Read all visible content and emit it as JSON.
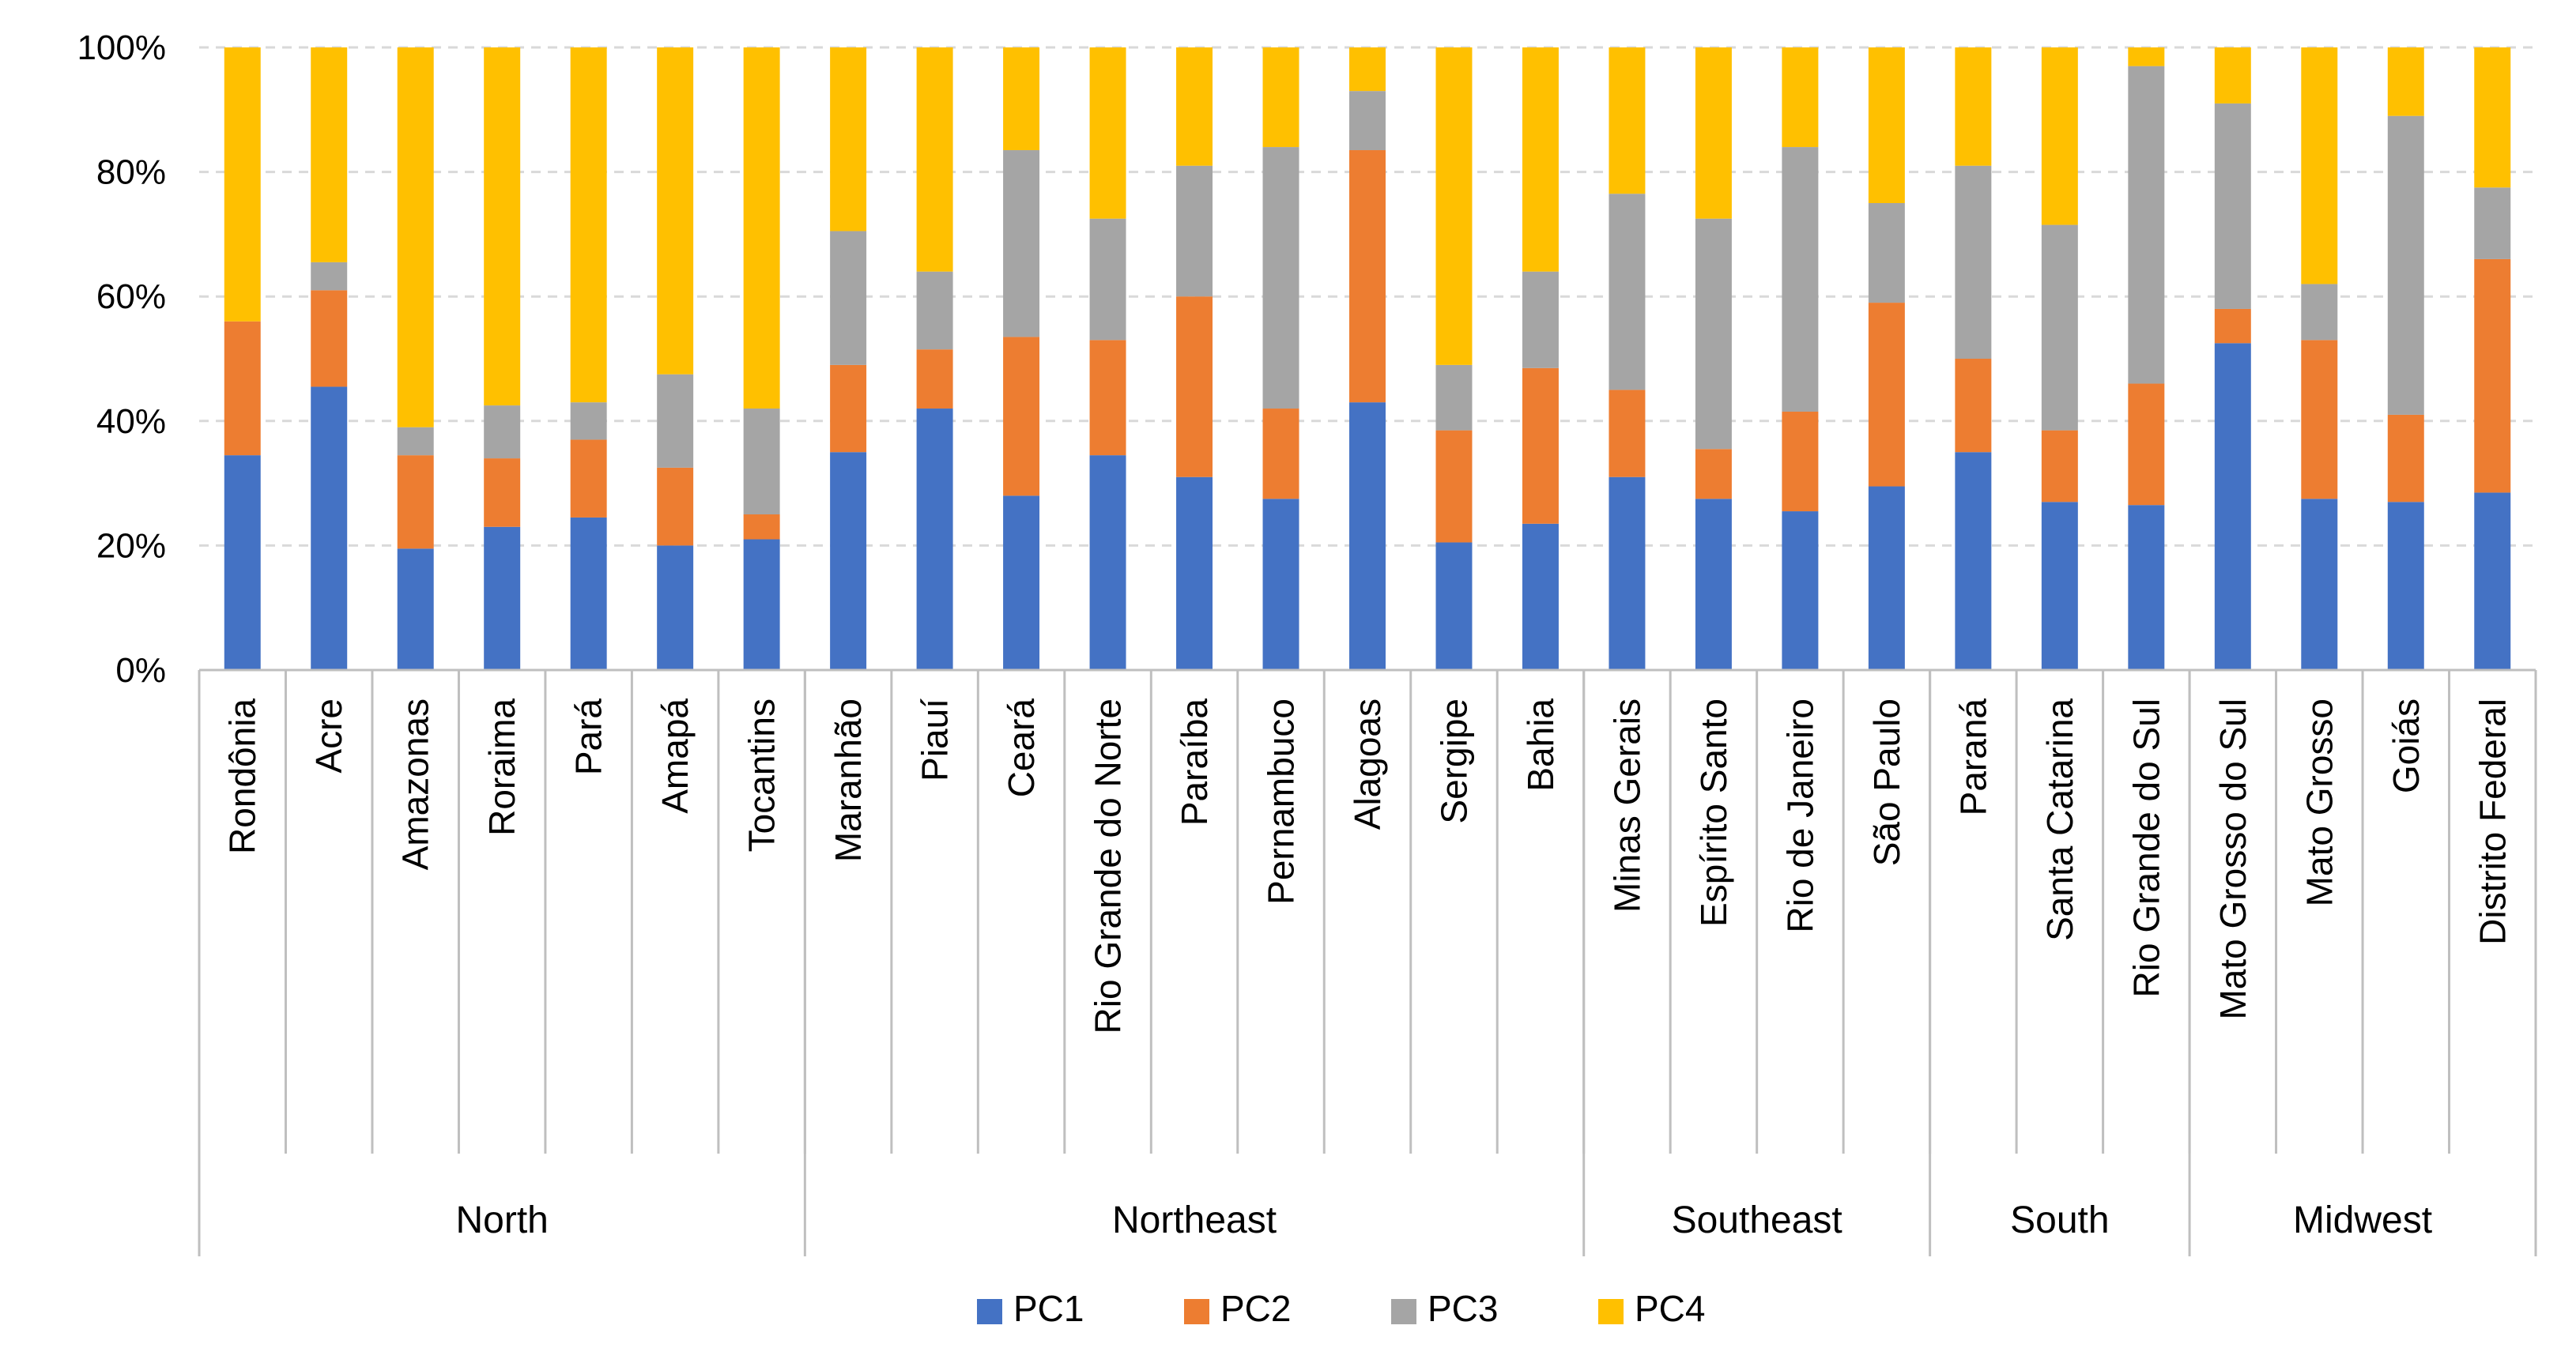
{
  "chart_data": {
    "type": "bar",
    "stacked": "percent",
    "ylim": [
      0,
      100
    ],
    "yticks": [
      "0%",
      "20%",
      "40%",
      "60%",
      "80%",
      "100%"
    ],
    "grid": true,
    "legend_position": "bottom",
    "series": [
      {
        "name": "PC1",
        "color": "#4472C4",
        "values": [
          34.5,
          45.5,
          19.5,
          23,
          24.5,
          20,
          21,
          35,
          42,
          28,
          34.5,
          31,
          27.5,
          43,
          20.5,
          23.5,
          31,
          27.5,
          25.5,
          29.5,
          35,
          27,
          26.5,
          52.5,
          27.5,
          27,
          28.5
        ]
      },
      {
        "name": "PC2",
        "color": "#ED7D31",
        "values": [
          21.5,
          15.5,
          15,
          11,
          12.5,
          12.5,
          4,
          14,
          9.5,
          25.5,
          18.5,
          29,
          14.5,
          40.5,
          18,
          25,
          14,
          8,
          16,
          29.5,
          15,
          11.5,
          19.5,
          5.5,
          25.5,
          14,
          37.5
        ]
      },
      {
        "name": "PC3",
        "color": "#A5A5A5",
        "values": [
          0,
          4.5,
          4.5,
          8.5,
          6,
          15,
          17,
          21.5,
          12.5,
          30,
          19.5,
          21,
          42,
          9.5,
          10.5,
          15.5,
          31.5,
          37,
          42.5,
          16,
          31,
          33,
          51,
          33,
          9,
          48,
          11.5
        ]
      },
      {
        "name": "PC4",
        "color": "#FFC000",
        "values": [
          44,
          34.5,
          61,
          57.5,
          57,
          52.5,
          58,
          29.5,
          36,
          16.5,
          27.5,
          19,
          16,
          7,
          51,
          36,
          23.5,
          27.5,
          16,
          25,
          19,
          28.5,
          3,
          9,
          38,
          11,
          22.5
        ]
      }
    ],
    "groups": [
      {
        "name": "North",
        "categories": [
          "Rondônia",
          "Acre",
          "Amazonas",
          "Roraima",
          "Pará",
          "Amapá",
          "Tocantins"
        ]
      },
      {
        "name": "Northeast",
        "categories": [
          "Maranhão",
          "Piauí",
          "Ceará",
          "Rio Grande do Norte",
          "Paraíba",
          "Pernambuco",
          "Alagoas",
          "Sergipe",
          "Bahia"
        ]
      },
      {
        "name": "Southeast",
        "categories": [
          "Minas Gerais",
          "Espírito Santo",
          "Rio de Janeiro",
          "São Paulo"
        ]
      },
      {
        "name": "South",
        "categories": [
          "Paraná",
          "Santa Catarina",
          "Rio Grande do Sul"
        ]
      },
      {
        "name": "Midwest",
        "categories": [
          "Mato Grosso do Sul",
          "Mato Grosso",
          "Goiás",
          "Distrito Federal"
        ]
      }
    ]
  }
}
